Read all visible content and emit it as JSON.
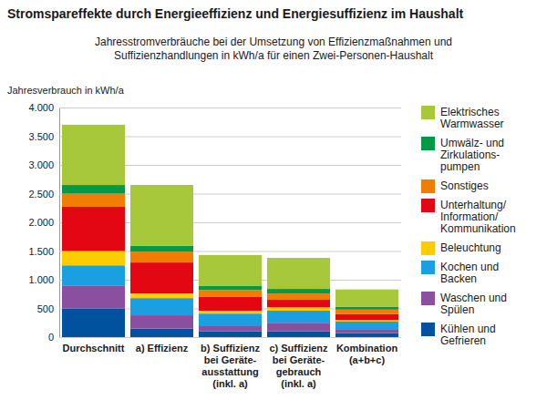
{
  "chart_data": {
    "type": "bar",
    "title": "Stromspareffekte durch Energieeffizienz und Energiesuffizienz im Haushalt",
    "subtitle": "Jahresstromverbräuche bei der Umsetzung von Effizienzmaßnahmen und\nSuffizienzhandlungen in kWh/a für einen Zwei-Personen-Haushalt",
    "ylabel": "Jahresverbrauch in kWh/a",
    "categories": [
      "Durchschnitt",
      "a) Effizienz",
      "b) Suffizienz\nbei Geräte-\nausstattung\n(inkl. a)",
      "c) Suffizienz\nbei Geräte-\ngebrauch\n(inkl. a)",
      "Kombination\n(a+b+c)"
    ],
    "series": [
      {
        "name": "Kühlen und\nGefrieren",
        "color": "#00519e",
        "values": [
          500,
          150,
          100,
          100,
          70
        ]
      },
      {
        "name": "Waschen und\nSpülen",
        "color": "#8a4f9e",
        "values": [
          400,
          230,
          90,
          150,
          70
        ]
      },
      {
        "name": "Kochen und\nBacken",
        "color": "#1a9fe0",
        "values": [
          350,
          300,
          220,
          210,
          130
        ]
      },
      {
        "name": "Beleuchtung",
        "color": "#ffcc00",
        "values": [
          250,
          80,
          50,
          60,
          30
        ]
      },
      {
        "name": "Unterhaltung/\nInformation/\nKommunikation",
        "color": "#e30613",
        "values": [
          770,
          540,
          240,
          130,
          100
        ]
      },
      {
        "name": "Sonstiges",
        "color": "#f07c00",
        "values": [
          230,
          190,
          120,
          110,
          80
        ]
      },
      {
        "name": "Umwälz- und\nZirkulations-\npumpen",
        "color": "#009a44",
        "values": [
          150,
          100,
          70,
          80,
          50
        ]
      },
      {
        "name": "Elektrisches\nWarmwasser",
        "color": "#a6c83a",
        "values": [
          1050,
          1060,
          540,
          540,
          300
        ]
      }
    ],
    "ylim": [
      0,
      4000
    ],
    "yticks": [
      0,
      500,
      {
        "value": 1000,
        "label": "1.000"
      },
      {
        "value": 1500,
        "label": "1.500"
      },
      {
        "value": 2000,
        "label": "2.000"
      },
      {
        "value": 2500,
        "label": "2.500"
      },
      {
        "value": 3000,
        "label": "3.000"
      },
      {
        "value": 3500,
        "label": "3.500"
      },
      {
        "value": 4000,
        "label": "4.000"
      }
    ],
    "grid": true,
    "stacked": true,
    "legend": "right"
  }
}
